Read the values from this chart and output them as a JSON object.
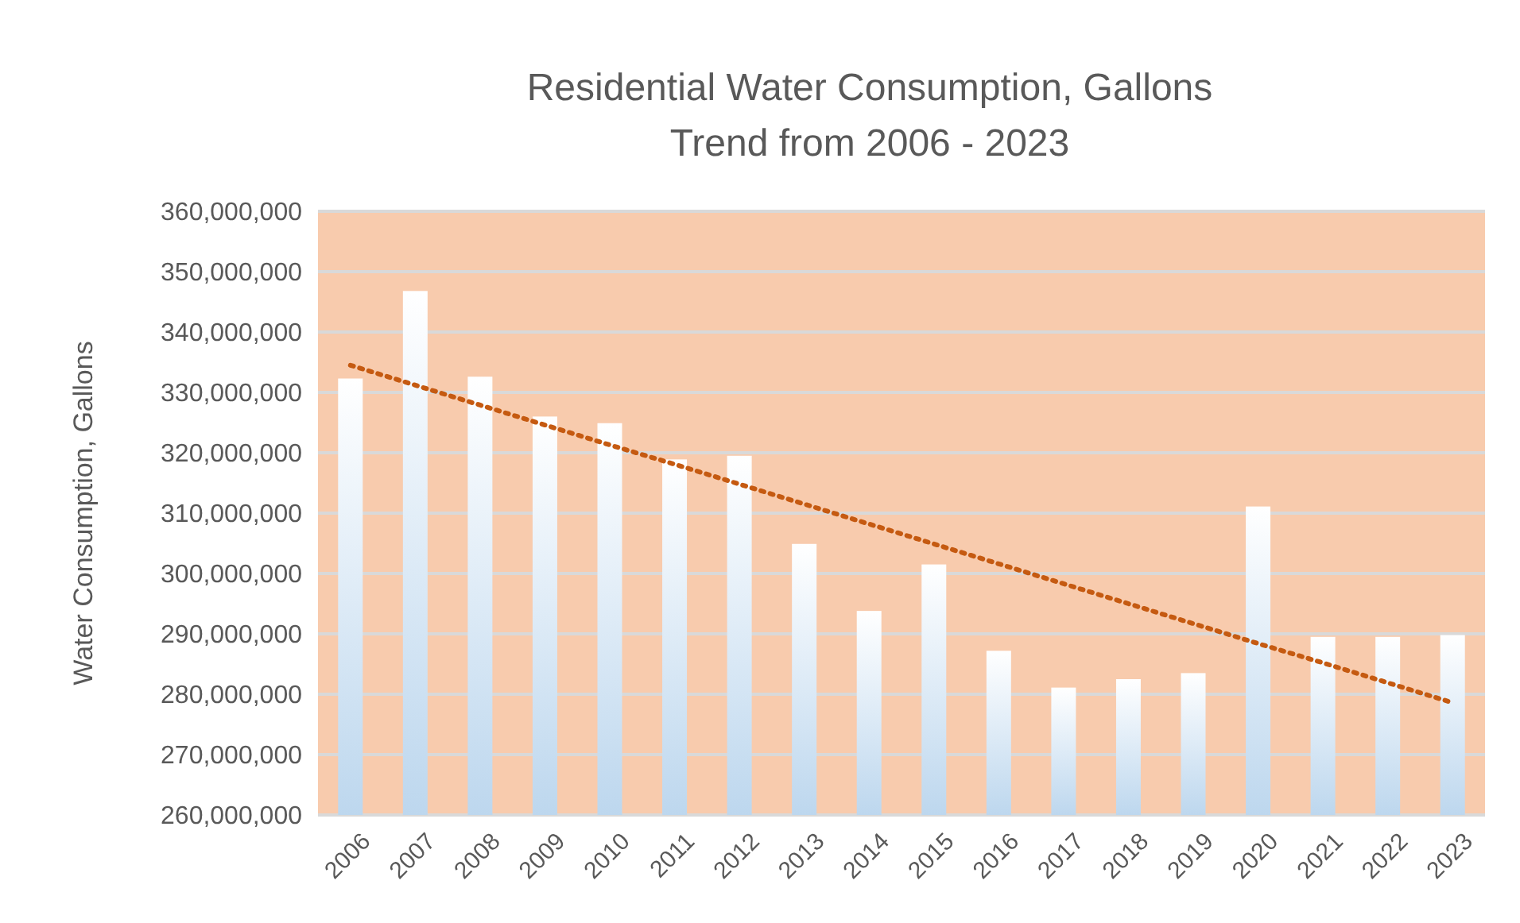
{
  "chart_data": {
    "type": "bar",
    "title": "Residential Water Consumption, Gallons",
    "subtitle": "Trend from 2006 - 2023",
    "ylabel": "Water Consumption, Gallons",
    "categories": [
      "2006",
      "2007",
      "2008",
      "2009",
      "2010",
      "2011",
      "2012",
      "2013",
      "2014",
      "2015",
      "2016",
      "2017",
      "2018",
      "2019",
      "2020",
      "2021",
      "2022",
      "2023"
    ],
    "series": [
      {
        "color": "#bdd7ee",
        "values": [
          332300000,
          346800000,
          332600000,
          326000000,
          324900000,
          318900000,
          319500000,
          304900000,
          293800000,
          301500000,
          287200000,
          281100000,
          282500000,
          283500000,
          311100000,
          289500000,
          289500000,
          289800000
        ]
      },
      {
        "type": "line",
        "color": "#c55a11",
        "line_style": "dotted",
        "marker": "none",
        "values": [
          334500000,
          331200000,
          327900000,
          324600000,
          321300000,
          318100000,
          314800000,
          311500000,
          308200000,
          304900000,
          301600000,
          298300000,
          295000000,
          291700000,
          288400000,
          285200000,
          281900000,
          278600000
        ]
      }
    ],
    "ylim": [
      260000000,
      360000000
    ],
    "yticks": [
      {
        "value": 260000000,
        "label": "260,000,000"
      },
      {
        "value": 270000000,
        "label": "270,000,000"
      },
      {
        "value": 280000000,
        "label": "280,000,000"
      },
      {
        "value": 290000000,
        "label": "290,000,000"
      },
      {
        "value": 300000000,
        "label": "300,000,000"
      },
      {
        "value": 310000000,
        "label": "310,000,000"
      },
      {
        "value": 320000000,
        "label": "320,000,000"
      },
      {
        "value": 330000000,
        "label": "330,000,000"
      },
      {
        "value": 340000000,
        "label": "340,000,000"
      },
      {
        "value": 350000000,
        "label": "350,000,000"
      },
      {
        "value": 360000000,
        "label": "360,000,000"
      }
    ],
    "grid": "y"
  }
}
